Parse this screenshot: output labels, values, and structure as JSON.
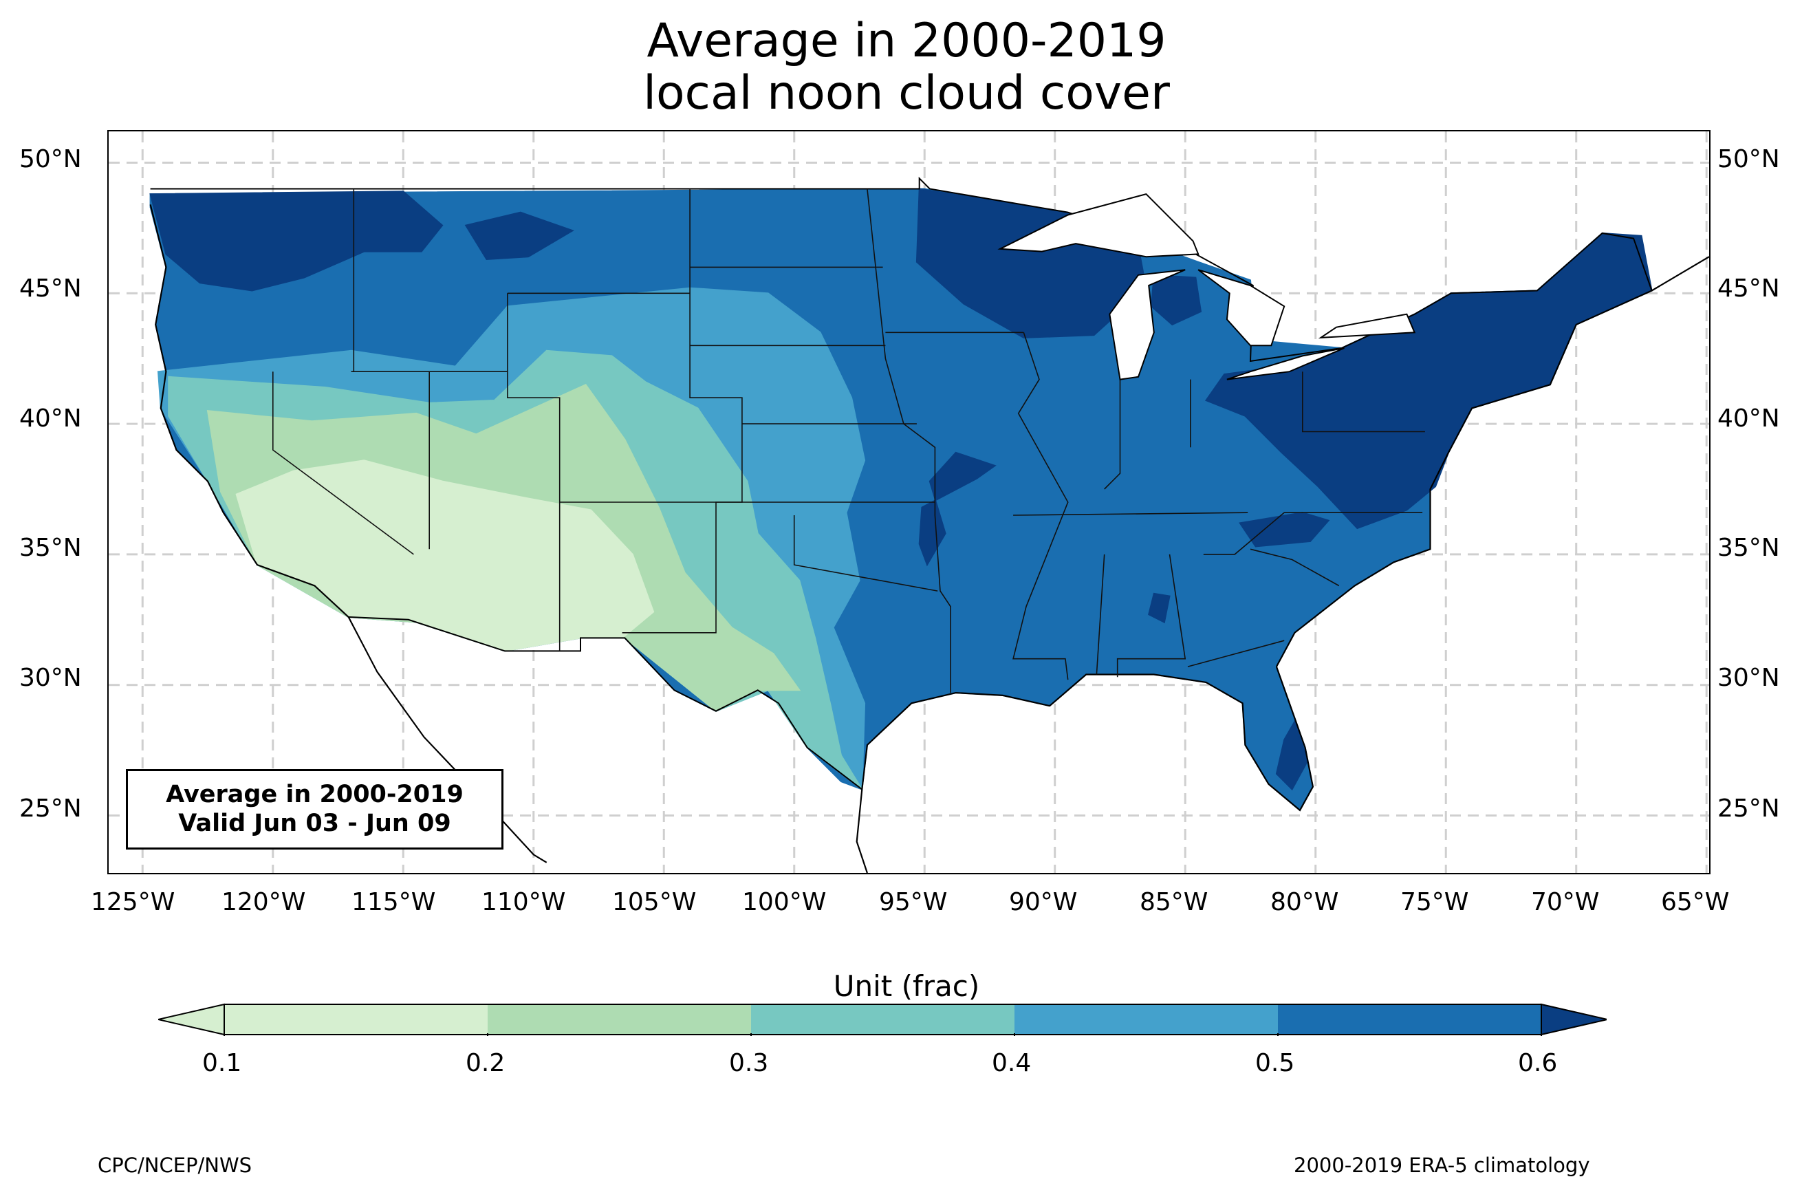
{
  "title": {
    "line1": "Average in 2000-2019",
    "line2": "local noon cloud cover"
  },
  "map": {
    "region": "contiguous United States",
    "lat_ticks": [
      "50°N",
      "45°N",
      "40°N",
      "35°N",
      "30°N",
      "25°N"
    ],
    "lon_ticks": [
      "125°W",
      "120°W",
      "115°W",
      "110°W",
      "105°W",
      "100°W",
      "95°W",
      "90°W",
      "85°W",
      "80°W",
      "75°W",
      "70°W",
      "65°W"
    ],
    "lon_range": [
      -126.3,
      -64.9
    ],
    "lat_range": [
      22.8,
      51.2
    ],
    "gridlines": "dashed",
    "shading": [
      {
        "area": "Washington / northern Rockies",
        "band": "0.6+"
      },
      {
        "area": "Lake Superior / northern Minnesota & Wisconsin",
        "band": "0.6+"
      },
      {
        "area": "Northeast / Mid-Atlantic / Appalachians",
        "band": "0.6+"
      },
      {
        "area": "Southeast & Mississippi valley",
        "band": "0.5-0.6"
      },
      {
        "area": "Great Plains",
        "band": "0.4-0.5"
      },
      {
        "area": "Central Rockies / Great Basin",
        "band": "0.2-0.4"
      },
      {
        "area": "Desert Southwest / southern California",
        "band": "0.1-0.2"
      },
      {
        "area": "South Texas",
        "band": "0.2-0.4"
      }
    ]
  },
  "infobox": {
    "line1": "Average in 2000-2019",
    "line2": "Valid Jun 03 - Jun 09"
  },
  "colorbar": {
    "label": "Unit (frac)",
    "ticks": [
      "0.1",
      "0.2",
      "0.3",
      "0.4",
      "0.5",
      "0.6"
    ],
    "colors": [
      "#d6efd0",
      "#aedcb2",
      "#77c8c1",
      "#44a1cc",
      "#1a6eb0",
      "#0a3e82"
    ],
    "extend": "both"
  },
  "footer": {
    "left": "CPC/NCEP/NWS",
    "right": "2000-2019 ERA-5 climatology"
  }
}
